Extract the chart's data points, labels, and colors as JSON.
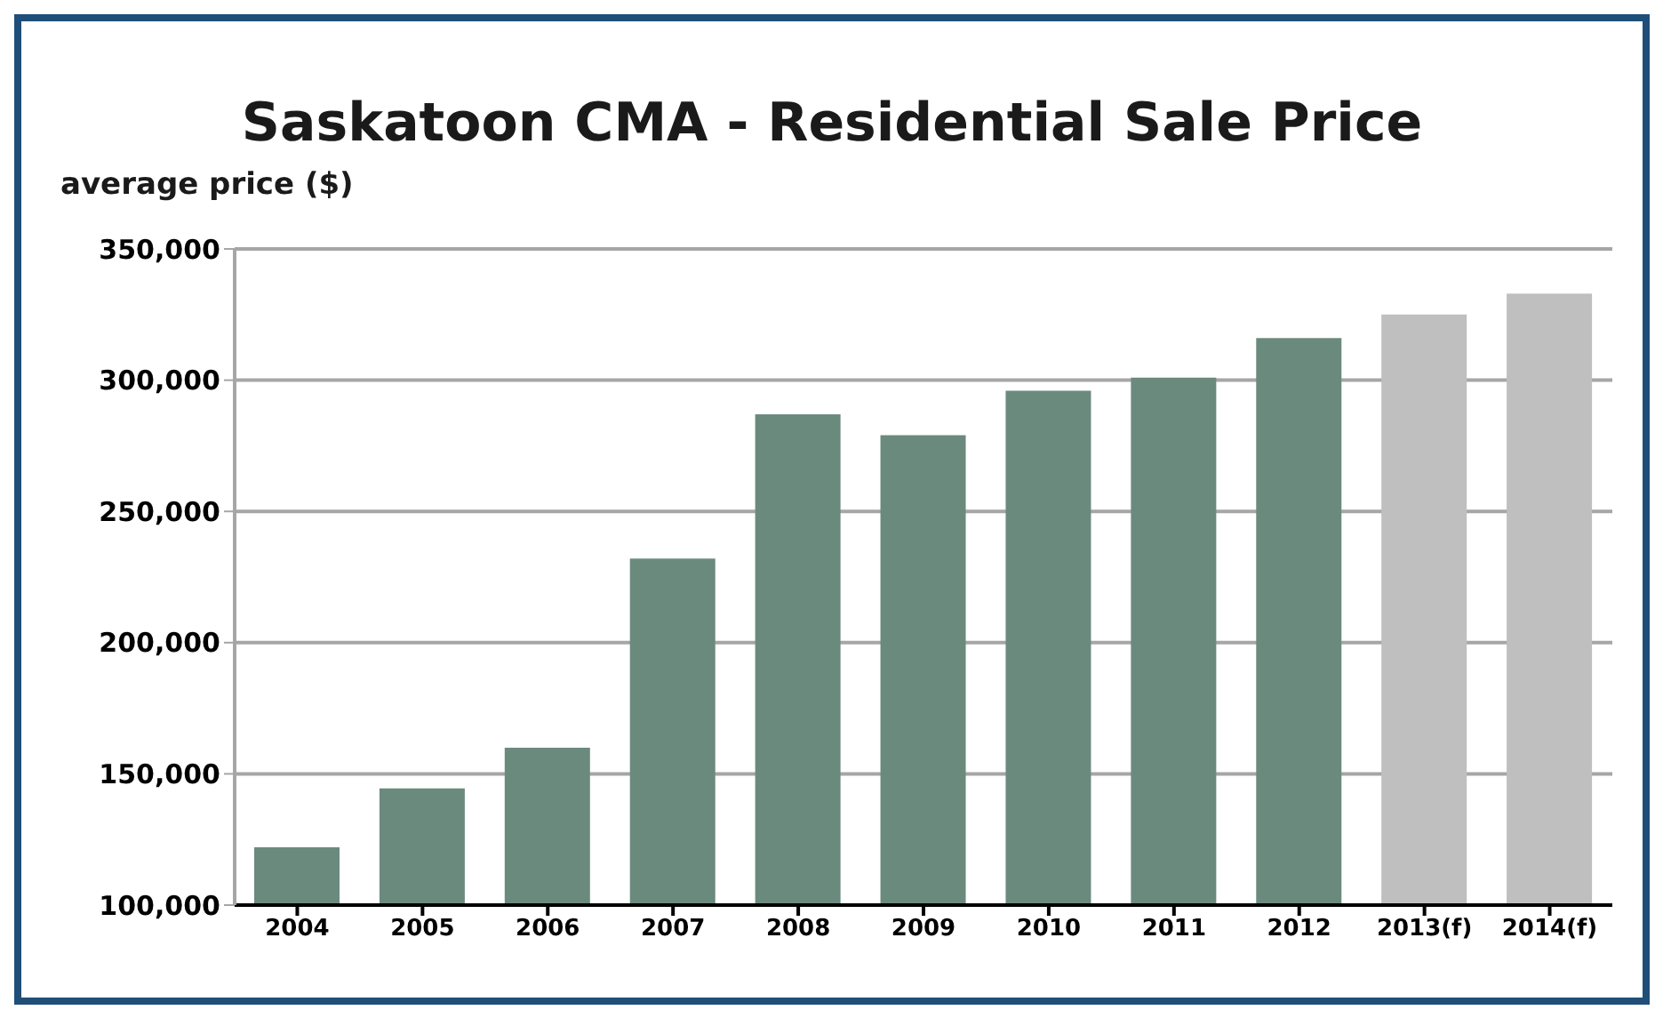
{
  "chart_data": {
    "type": "bar",
    "title": "Saskatoon CMA - Residential Sale Price",
    "ylabel": "average price ($)",
    "categories": [
      "2004",
      "2005",
      "2006",
      "2007",
      "2008",
      "2009",
      "2010",
      "2011",
      "2012",
      "2013(f)",
      "2014(f)"
    ],
    "values": [
      122000,
      144500,
      160000,
      232000,
      287000,
      279000,
      296000,
      301000,
      316000,
      325000,
      333000
    ],
    "colors": [
      "#6b8a7e",
      "#6b8a7e",
      "#6b8a7e",
      "#6b8a7e",
      "#6b8a7e",
      "#6b8a7e",
      "#6b8a7e",
      "#6b8a7e",
      "#6b8a7e",
      "#bfbfbf",
      "#bfbfbf"
    ],
    "ylim": [
      100000,
      350000
    ],
    "yticks": [
      {
        "value": 100000,
        "label": "100,000"
      },
      {
        "value": 150000,
        "label": "150,000"
      },
      {
        "value": 200000,
        "label": "200,000"
      },
      {
        "value": 250000,
        "label": "250,000"
      },
      {
        "value": 300000,
        "label": "300,000"
      },
      {
        "value": 350000,
        "label": "350,000"
      }
    ],
    "grid": "y"
  }
}
